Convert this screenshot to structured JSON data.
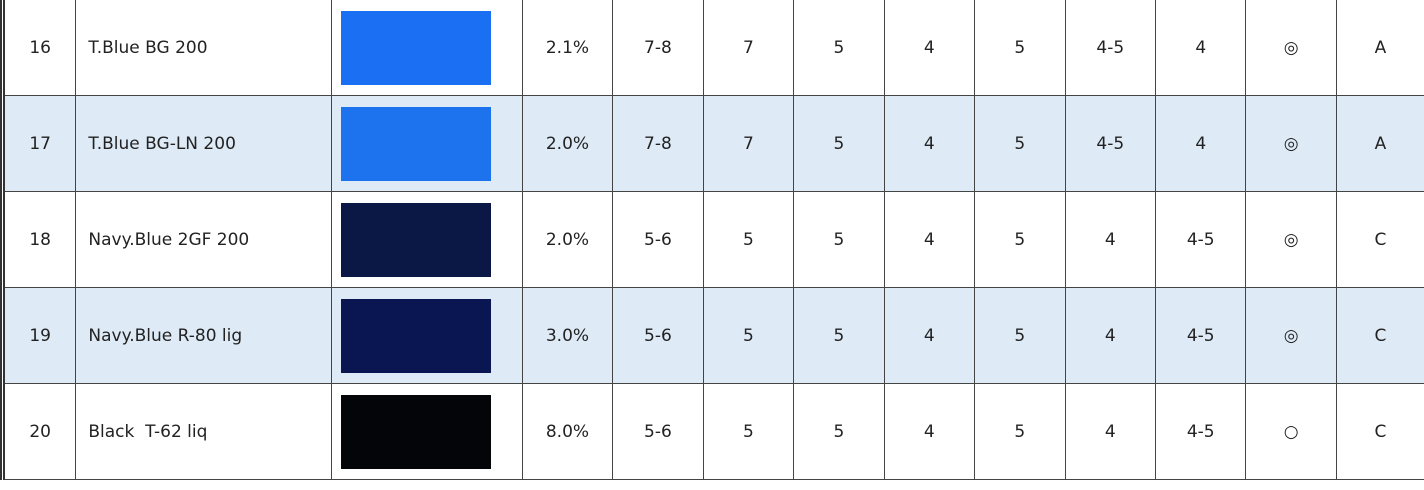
{
  "table": {
    "rows": [
      [
        "16",
        "T.Blue BG 200",
        "2.1%",
        "7-8",
        "7",
        "5",
        "4",
        "5",
        "4-5",
        "4",
        "◎",
        "A"
      ],
      [
        "17",
        "T.Blue BG-LN 200",
        "2.0%",
        "7-8",
        "7",
        "5",
        "4",
        "5",
        "4-5",
        "4",
        "◎",
        "A"
      ],
      [
        "18",
        "Navy.Blue 2GF 200",
        "2.0%",
        "5-6",
        "5",
        "5",
        "4",
        "5",
        "4",
        "4-5",
        "◎",
        "C"
      ],
      [
        "19",
        "Navy.Blue R-80 lig",
        "3.0%",
        "5-6",
        "5",
        "5",
        "4",
        "5",
        "4",
        "4-5",
        "◎",
        "C"
      ],
      [
        "20",
        "Black  T-62 liq",
        "8.0%",
        "5-6",
        "5",
        "5",
        "4",
        "5",
        "4",
        "4-5",
        "○",
        "C"
      ]
    ],
    "swatches": [
      "#1b6ff2",
      "#1d72ee",
      "#0b1846",
      "#0a1651",
      "#040508"
    ]
  }
}
